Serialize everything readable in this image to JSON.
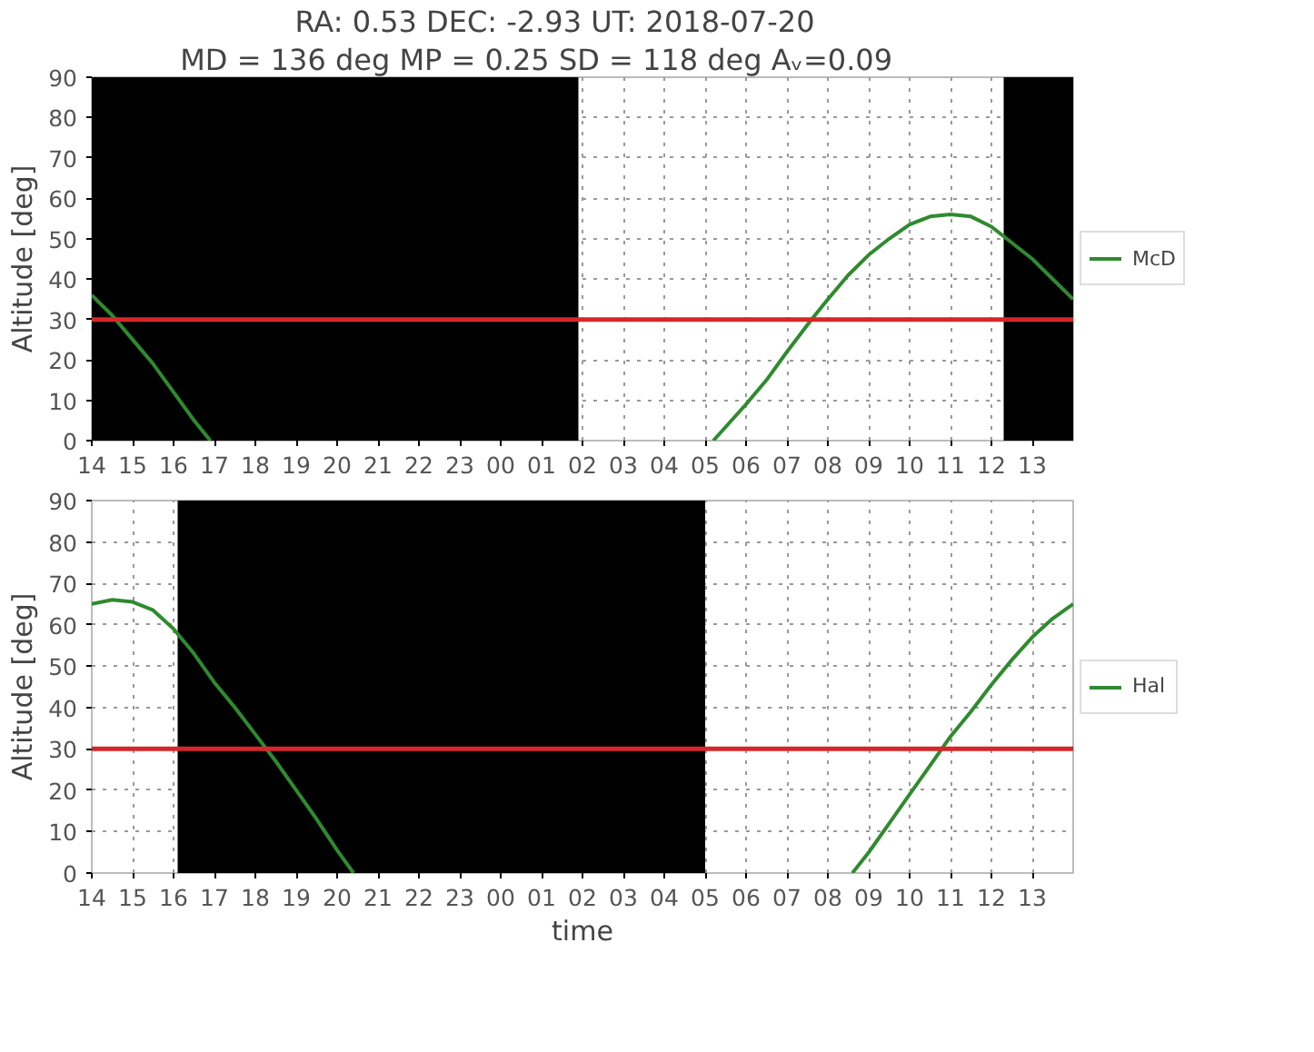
{
  "chart_data": [
    {
      "type": "line",
      "title": "RA: 0.53    DEC: -2.93    UT: 2018-07-20",
      "subtitle": "MD = 136 deg     MP = 0.25    SD = 118 deg    Aᵥ=0.09",
      "ylabel": "Altitude [deg]",
      "xlim": [
        "2018-07-20T14:00",
        "2018-07-21T14:00"
      ],
      "xticks": [
        {
          "value": "2018-07-20T14:00",
          "label": "14"
        },
        {
          "value": "2018-07-20T15:00",
          "label": "15"
        },
        {
          "value": "2018-07-20T16:00",
          "label": "16"
        },
        {
          "value": "2018-07-20T17:00",
          "label": "17"
        },
        {
          "value": "2018-07-20T18:00",
          "label": "18"
        },
        {
          "value": "2018-07-20T19:00",
          "label": "19"
        },
        {
          "value": "2018-07-20T20:00",
          "label": "20"
        },
        {
          "value": "2018-07-20T21:00",
          "label": "21"
        },
        {
          "value": "2018-07-20T22:00",
          "label": "22"
        },
        {
          "value": "2018-07-20T23:00",
          "label": "23"
        },
        {
          "value": "2018-07-21T00:00",
          "label": "00"
        },
        {
          "value": "2018-07-21T01:00",
          "label": "01"
        },
        {
          "value": "2018-07-21T02:00",
          "label": "02"
        },
        {
          "value": "2018-07-21T03:00",
          "label": "03"
        },
        {
          "value": "2018-07-21T04:00",
          "label": "04"
        },
        {
          "value": "2018-07-21T05:00",
          "label": "05"
        },
        {
          "value": "2018-07-21T06:00",
          "label": "06"
        },
        {
          "value": "2018-07-21T07:00",
          "label": "07"
        },
        {
          "value": "2018-07-21T08:00",
          "label": "08"
        },
        {
          "value": "2018-07-21T09:00",
          "label": "09"
        },
        {
          "value": "2018-07-21T10:00",
          "label": "10"
        },
        {
          "value": "2018-07-21T11:00",
          "label": "11"
        },
        {
          "value": "2018-07-21T12:00",
          "label": "12"
        },
        {
          "value": "2018-07-21T13:00",
          "label": "13"
        }
      ],
      "ylim": [
        0,
        90
      ],
      "yticks": [
        0,
        10,
        20,
        30,
        40,
        50,
        60,
        70,
        80,
        90
      ],
      "series": [
        {
          "name": "McD",
          "color": "#2e8b2e",
          "x": [
            "2018-07-20T14:00",
            "2018-07-20T14:30",
            "2018-07-20T15:00",
            "2018-07-20T15:30",
            "2018-07-20T16:00",
            "2018-07-20T16:30",
            "2018-07-20T16:54",
            "2018-07-20T23:00",
            "2018-07-21T05:12",
            "2018-07-21T06:00",
            "2018-07-21T06:30",
            "2018-07-21T07:00",
            "2018-07-21T07:36",
            "2018-07-21T08:00",
            "2018-07-21T08:30",
            "2018-07-21T09:00",
            "2018-07-21T09:30",
            "2018-07-21T10:00",
            "2018-07-21T10:30",
            "2018-07-21T11:00",
            "2018-07-21T11:30",
            "2018-07-21T12:00",
            "2018-07-21T12:30",
            "2018-07-21T13:00",
            "2018-07-21T13:30",
            "2018-07-21T14:00"
          ],
          "values": [
            36,
            31,
            25,
            19,
            12,
            5,
            0,
            null,
            0,
            9,
            15,
            22,
            30,
            35,
            41,
            46,
            50,
            53.5,
            55.5,
            56,
            55.5,
            53,
            49,
            45,
            40,
            35
          ]
        }
      ],
      "bands": [
        {
          "axis": "x",
          "from": "2018-07-20T14:00",
          "to": "2018-07-21T01:54",
          "color": "#000000"
        },
        {
          "axis": "x",
          "from": "2018-07-21T12:18",
          "to": "2018-07-21T14:00",
          "color": "#000000"
        }
      ],
      "ref_lines": [
        {
          "axis": "y",
          "value": 30,
          "color": "#d62728"
        }
      ],
      "grid": true,
      "legend": "right",
      "line_style": "solid",
      "marker": "none"
    },
    {
      "type": "line",
      "ylabel": "Altitude [deg]",
      "xlabel": "time",
      "xlim": [
        "2018-07-20T14:00",
        "2018-07-21T14:00"
      ],
      "xticks": [
        {
          "value": "2018-07-20T14:00",
          "label": "14"
        },
        {
          "value": "2018-07-20T15:00",
          "label": "15"
        },
        {
          "value": "2018-07-20T16:00",
          "label": "16"
        },
        {
          "value": "2018-07-20T17:00",
          "label": "17"
        },
        {
          "value": "2018-07-20T18:00",
          "label": "18"
        },
        {
          "value": "2018-07-20T19:00",
          "label": "19"
        },
        {
          "value": "2018-07-20T20:00",
          "label": "20"
        },
        {
          "value": "2018-07-20T21:00",
          "label": "21"
        },
        {
          "value": "2018-07-20T22:00",
          "label": "22"
        },
        {
          "value": "2018-07-20T23:00",
          "label": "23"
        },
        {
          "value": "2018-07-21T00:00",
          "label": "00"
        },
        {
          "value": "2018-07-21T01:00",
          "label": "01"
        },
        {
          "value": "2018-07-21T02:00",
          "label": "02"
        },
        {
          "value": "2018-07-21T03:00",
          "label": "03"
        },
        {
          "value": "2018-07-21T04:00",
          "label": "04"
        },
        {
          "value": "2018-07-21T05:00",
          "label": "05"
        },
        {
          "value": "2018-07-21T06:00",
          "label": "06"
        },
        {
          "value": "2018-07-21T07:00",
          "label": "07"
        },
        {
          "value": "2018-07-21T08:00",
          "label": "08"
        },
        {
          "value": "2018-07-21T09:00",
          "label": "09"
        },
        {
          "value": "2018-07-21T10:00",
          "label": "10"
        },
        {
          "value": "2018-07-21T11:00",
          "label": "11"
        },
        {
          "value": "2018-07-21T12:00",
          "label": "12"
        },
        {
          "value": "2018-07-21T13:00",
          "label": "13"
        }
      ],
      "ylim": [
        0,
        90
      ],
      "yticks": [
        0,
        10,
        20,
        30,
        40,
        50,
        60,
        70,
        80,
        90
      ],
      "series": [
        {
          "name": "Hal",
          "color": "#2e8b2e",
          "x": [
            "2018-07-20T14:00",
            "2018-07-20T14:30",
            "2018-07-20T15:00",
            "2018-07-20T15:30",
            "2018-07-20T16:00",
            "2018-07-20T16:30",
            "2018-07-20T17:00",
            "2018-07-20T17:30",
            "2018-07-20T18:00",
            "2018-07-20T18:30",
            "2018-07-20T19:00",
            "2018-07-20T19:30",
            "2018-07-20T20:00",
            "2018-07-20T20:24",
            "2018-07-21T02:00",
            "2018-07-21T08:36",
            "2018-07-21T09:00",
            "2018-07-21T09:30",
            "2018-07-21T10:00",
            "2018-07-21T10:30",
            "2018-07-21T11:00",
            "2018-07-21T11:30",
            "2018-07-21T12:00",
            "2018-07-21T12:30",
            "2018-07-21T13:00",
            "2018-07-21T13:30",
            "2018-07-21T14:00"
          ],
          "values": [
            65,
            66,
            65.5,
            63.5,
            59,
            53,
            46,
            40,
            33.5,
            27,
            20,
            13,
            5.5,
            0,
            null,
            0,
            5,
            12,
            19,
            26,
            33,
            39,
            45.5,
            51.5,
            57,
            61.5,
            65
          ]
        }
      ],
      "bands": [
        {
          "axis": "x",
          "from": "2018-07-20T16:06",
          "to": "2018-07-21T05:00",
          "color": "#000000"
        }
      ],
      "ref_lines": [
        {
          "axis": "y",
          "value": 30,
          "color": "#d62728"
        }
      ],
      "grid": true,
      "legend": "right",
      "line_style": "solid",
      "marker": "none"
    }
  ]
}
